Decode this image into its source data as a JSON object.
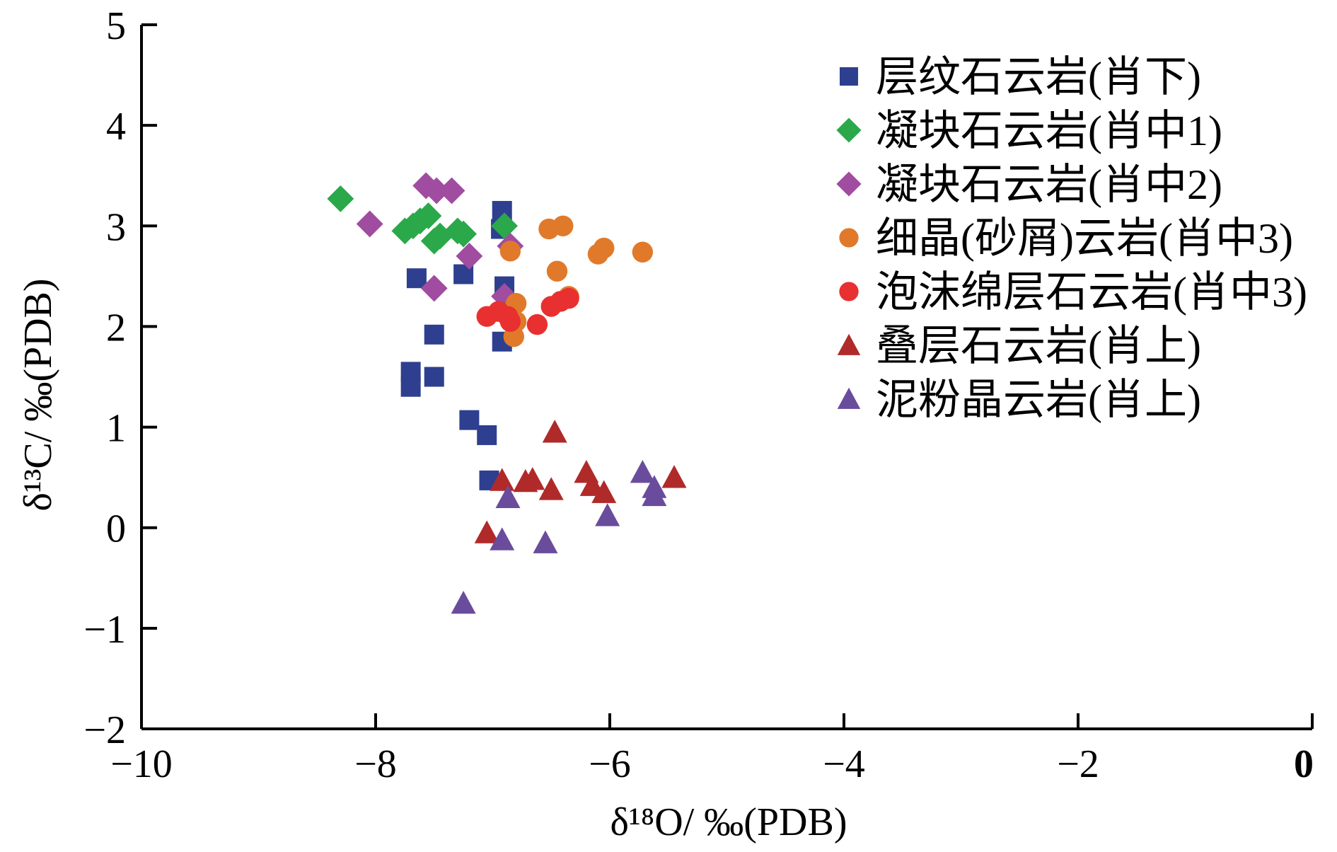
{
  "chart_data": {
    "type": "scatter",
    "title": "",
    "xlabel": "δ¹⁸O/ ‰(PDB)",
    "ylabel": "δ¹³C/ ‰(PDB)",
    "xlim": [
      -10,
      0
    ],
    "ylim": [
      -2,
      5
    ],
    "xticks": [
      -10,
      -8,
      -6,
      -4,
      -2,
      0
    ],
    "yticks": [
      -2,
      -1,
      0,
      1,
      2,
      3,
      4,
      5
    ],
    "xtick_labels": [
      "−10",
      "−8",
      "−6",
      "−4",
      "−2",
      "0"
    ],
    "ytick_labels": [
      "−2",
      "−1",
      "0",
      "1",
      "2",
      "3",
      "4",
      "5"
    ],
    "grid": false,
    "legend_position": "top-right",
    "series": [
      {
        "name": "层纹石云岩(肖下)",
        "marker": "square",
        "color": "#2e3f8f",
        "points": [
          [
            -7.7,
            1.55
          ],
          [
            -7.7,
            1.4
          ],
          [
            -7.65,
            2.48
          ],
          [
            -7.5,
            1.5
          ],
          [
            -7.5,
            1.92
          ],
          [
            -7.25,
            2.52
          ],
          [
            -7.2,
            1.07
          ],
          [
            -7.05,
            0.92
          ],
          [
            -7.03,
            0.47
          ],
          [
            -6.92,
            3.15
          ],
          [
            -6.93,
            2.97
          ],
          [
            -6.9,
            2.4
          ],
          [
            -6.92,
            1.85
          ]
        ]
      },
      {
        "name": "凝块石云岩(肖中1)",
        "marker": "diamond",
        "color": "#2aa84a",
        "points": [
          [
            -8.3,
            3.27
          ],
          [
            -7.75,
            2.95
          ],
          [
            -7.68,
            3.0
          ],
          [
            -7.62,
            3.05
          ],
          [
            -7.55,
            3.1
          ],
          [
            -7.5,
            2.85
          ],
          [
            -7.45,
            2.9
          ],
          [
            -7.3,
            2.95
          ],
          [
            -7.25,
            2.92
          ],
          [
            -6.9,
            3.0
          ]
        ]
      },
      {
        "name": "凝块石云岩(肖中2)",
        "marker": "diamond",
        "color": "#a04ca0",
        "points": [
          [
            -8.05,
            3.02
          ],
          [
            -7.57,
            3.4
          ],
          [
            -7.48,
            3.35
          ],
          [
            -7.35,
            3.35
          ],
          [
            -7.5,
            2.38
          ],
          [
            -7.2,
            2.7
          ],
          [
            -6.9,
            2.3
          ],
          [
            -6.85,
            2.8
          ]
        ]
      },
      {
        "name": "细晶(砂屑)云岩(肖中3)",
        "marker": "circle",
        "color": "#e07a2a",
        "points": [
          [
            -6.52,
            2.97
          ],
          [
            -6.4,
            3.0
          ],
          [
            -6.85,
            2.75
          ],
          [
            -6.1,
            2.72
          ],
          [
            -6.05,
            2.78
          ],
          [
            -5.72,
            2.74
          ],
          [
            -6.45,
            2.55
          ],
          [
            -6.35,
            2.3
          ],
          [
            -6.8,
            2.23
          ],
          [
            -6.8,
            2.05
          ],
          [
            -6.82,
            1.9
          ]
        ]
      },
      {
        "name": "泡沫绵层石云岩(肖中3)",
        "marker": "circle",
        "color": "#e83030",
        "points": [
          [
            -7.05,
            2.1
          ],
          [
            -6.95,
            2.15
          ],
          [
            -6.87,
            2.1
          ],
          [
            -6.85,
            2.05
          ],
          [
            -6.62,
            2.02
          ],
          [
            -6.5,
            2.2
          ],
          [
            -6.42,
            2.25
          ],
          [
            -6.35,
            2.28
          ]
        ]
      },
      {
        "name": "叠层石云岩(肖上)",
        "marker": "triangle",
        "color": "#b02a2a",
        "points": [
          [
            -7.05,
            -0.05
          ],
          [
            -6.92,
            0.47
          ],
          [
            -6.72,
            0.46
          ],
          [
            -6.66,
            0.48
          ],
          [
            -6.47,
            0.95
          ],
          [
            -6.5,
            0.38
          ],
          [
            -6.2,
            0.55
          ],
          [
            -6.15,
            0.42
          ],
          [
            -6.05,
            0.35
          ],
          [
            -5.45,
            0.5
          ]
        ]
      },
      {
        "name": "泥粉晶云岩(肖上)",
        "marker": "triangle",
        "color": "#6a4c9c",
        "points": [
          [
            -7.25,
            -0.75
          ],
          [
            -6.92,
            -0.12
          ],
          [
            -6.87,
            0.3
          ],
          [
            -6.55,
            -0.15
          ],
          [
            -6.02,
            0.12
          ],
          [
            -5.72,
            0.55
          ],
          [
            -5.62,
            0.4
          ],
          [
            -5.62,
            0.32
          ]
        ]
      }
    ]
  }
}
